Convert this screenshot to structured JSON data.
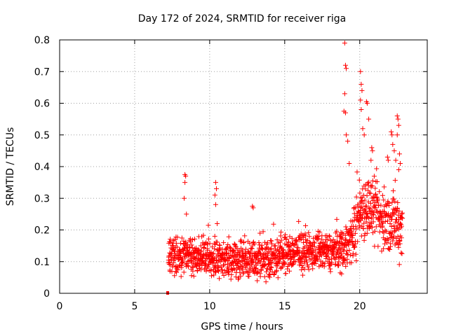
{
  "chart_data": {
    "type": "scatter",
    "title": "Day 172 of 2024, SRMTID for receiver riga",
    "xlabel": "GPS time / hours",
    "ylabel": "SRMTID / TECUs",
    "xlim": [
      0,
      24.5
    ],
    "ylim": [
      0,
      0.8
    ],
    "x_ticks": [
      0,
      5,
      10,
      15,
      20
    ],
    "x_tick_labels": [
      "0",
      "5",
      "10",
      "15",
      "20"
    ],
    "y_ticks": [
      0,
      0.1,
      0.2,
      0.3,
      0.4,
      0.5,
      0.6,
      0.7,
      0.8
    ],
    "y_tick_labels": [
      "0",
      "0.1",
      "0.2",
      "0.3",
      "0.4",
      "0.5",
      "0.6",
      "0.7",
      "0.8"
    ],
    "grid": true,
    "marker": "plus",
    "color": "#ff0000",
    "series": [
      {
        "name": "SRMTID",
        "x_start": 7.25,
        "x_end": 22.85,
        "zero_marker_x": 7.2,
        "trend": [
          [
            7.25,
            0.11
          ],
          [
            8.0,
            0.12
          ],
          [
            9.0,
            0.12
          ],
          [
            10.0,
            0.11
          ],
          [
            11.0,
            0.11
          ],
          [
            12.0,
            0.1
          ],
          [
            13.0,
            0.11
          ],
          [
            14.0,
            0.11
          ],
          [
            15.0,
            0.12
          ],
          [
            16.0,
            0.13
          ],
          [
            17.0,
            0.13
          ],
          [
            18.0,
            0.13
          ],
          [
            18.8,
            0.14
          ],
          [
            19.5,
            0.17
          ],
          [
            20.0,
            0.26
          ],
          [
            20.5,
            0.28
          ],
          [
            21.0,
            0.25
          ],
          [
            21.5,
            0.23
          ],
          [
            22.0,
            0.22
          ],
          [
            22.85,
            0.21
          ]
        ],
        "peaks": [
          [
            8.35,
            0.375
          ],
          [
            8.4,
            0.37
          ],
          [
            8.35,
            0.35
          ],
          [
            8.3,
            0.3
          ],
          [
            8.45,
            0.25
          ],
          [
            10.4,
            0.35
          ],
          [
            10.45,
            0.33
          ],
          [
            10.35,
            0.31
          ],
          [
            10.4,
            0.28
          ],
          [
            10.5,
            0.22
          ],
          [
            12.85,
            0.275
          ],
          [
            12.9,
            0.27
          ],
          [
            19.0,
            0.79
          ],
          [
            19.05,
            0.72
          ],
          [
            19.1,
            0.71
          ],
          [
            19.0,
            0.63
          ],
          [
            18.95,
            0.575
          ],
          [
            19.05,
            0.57
          ],
          [
            19.1,
            0.5
          ],
          [
            19.2,
            0.48
          ],
          [
            19.3,
            0.41
          ],
          [
            20.05,
            0.7
          ],
          [
            20.1,
            0.66
          ],
          [
            20.15,
            0.64
          ],
          [
            20.05,
            0.61
          ],
          [
            20.1,
            0.58
          ],
          [
            20.45,
            0.605
          ],
          [
            20.5,
            0.6
          ],
          [
            20.6,
            0.55
          ],
          [
            20.2,
            0.52
          ],
          [
            20.3,
            0.5
          ],
          [
            20.8,
            0.46
          ],
          [
            20.85,
            0.45
          ],
          [
            20.75,
            0.42
          ],
          [
            21.85,
            0.43
          ],
          [
            21.9,
            0.42
          ],
          [
            22.1,
            0.51
          ],
          [
            22.15,
            0.5
          ],
          [
            22.2,
            0.47
          ],
          [
            22.5,
            0.56
          ],
          [
            22.55,
            0.55
          ],
          [
            22.6,
            0.53
          ],
          [
            22.5,
            0.5
          ],
          [
            22.65,
            0.44
          ],
          [
            22.7,
            0.41
          ],
          [
            22.6,
            0.39
          ],
          [
            22.3,
            0.45
          ],
          [
            22.4,
            0.42
          ]
        ]
      }
    ]
  }
}
